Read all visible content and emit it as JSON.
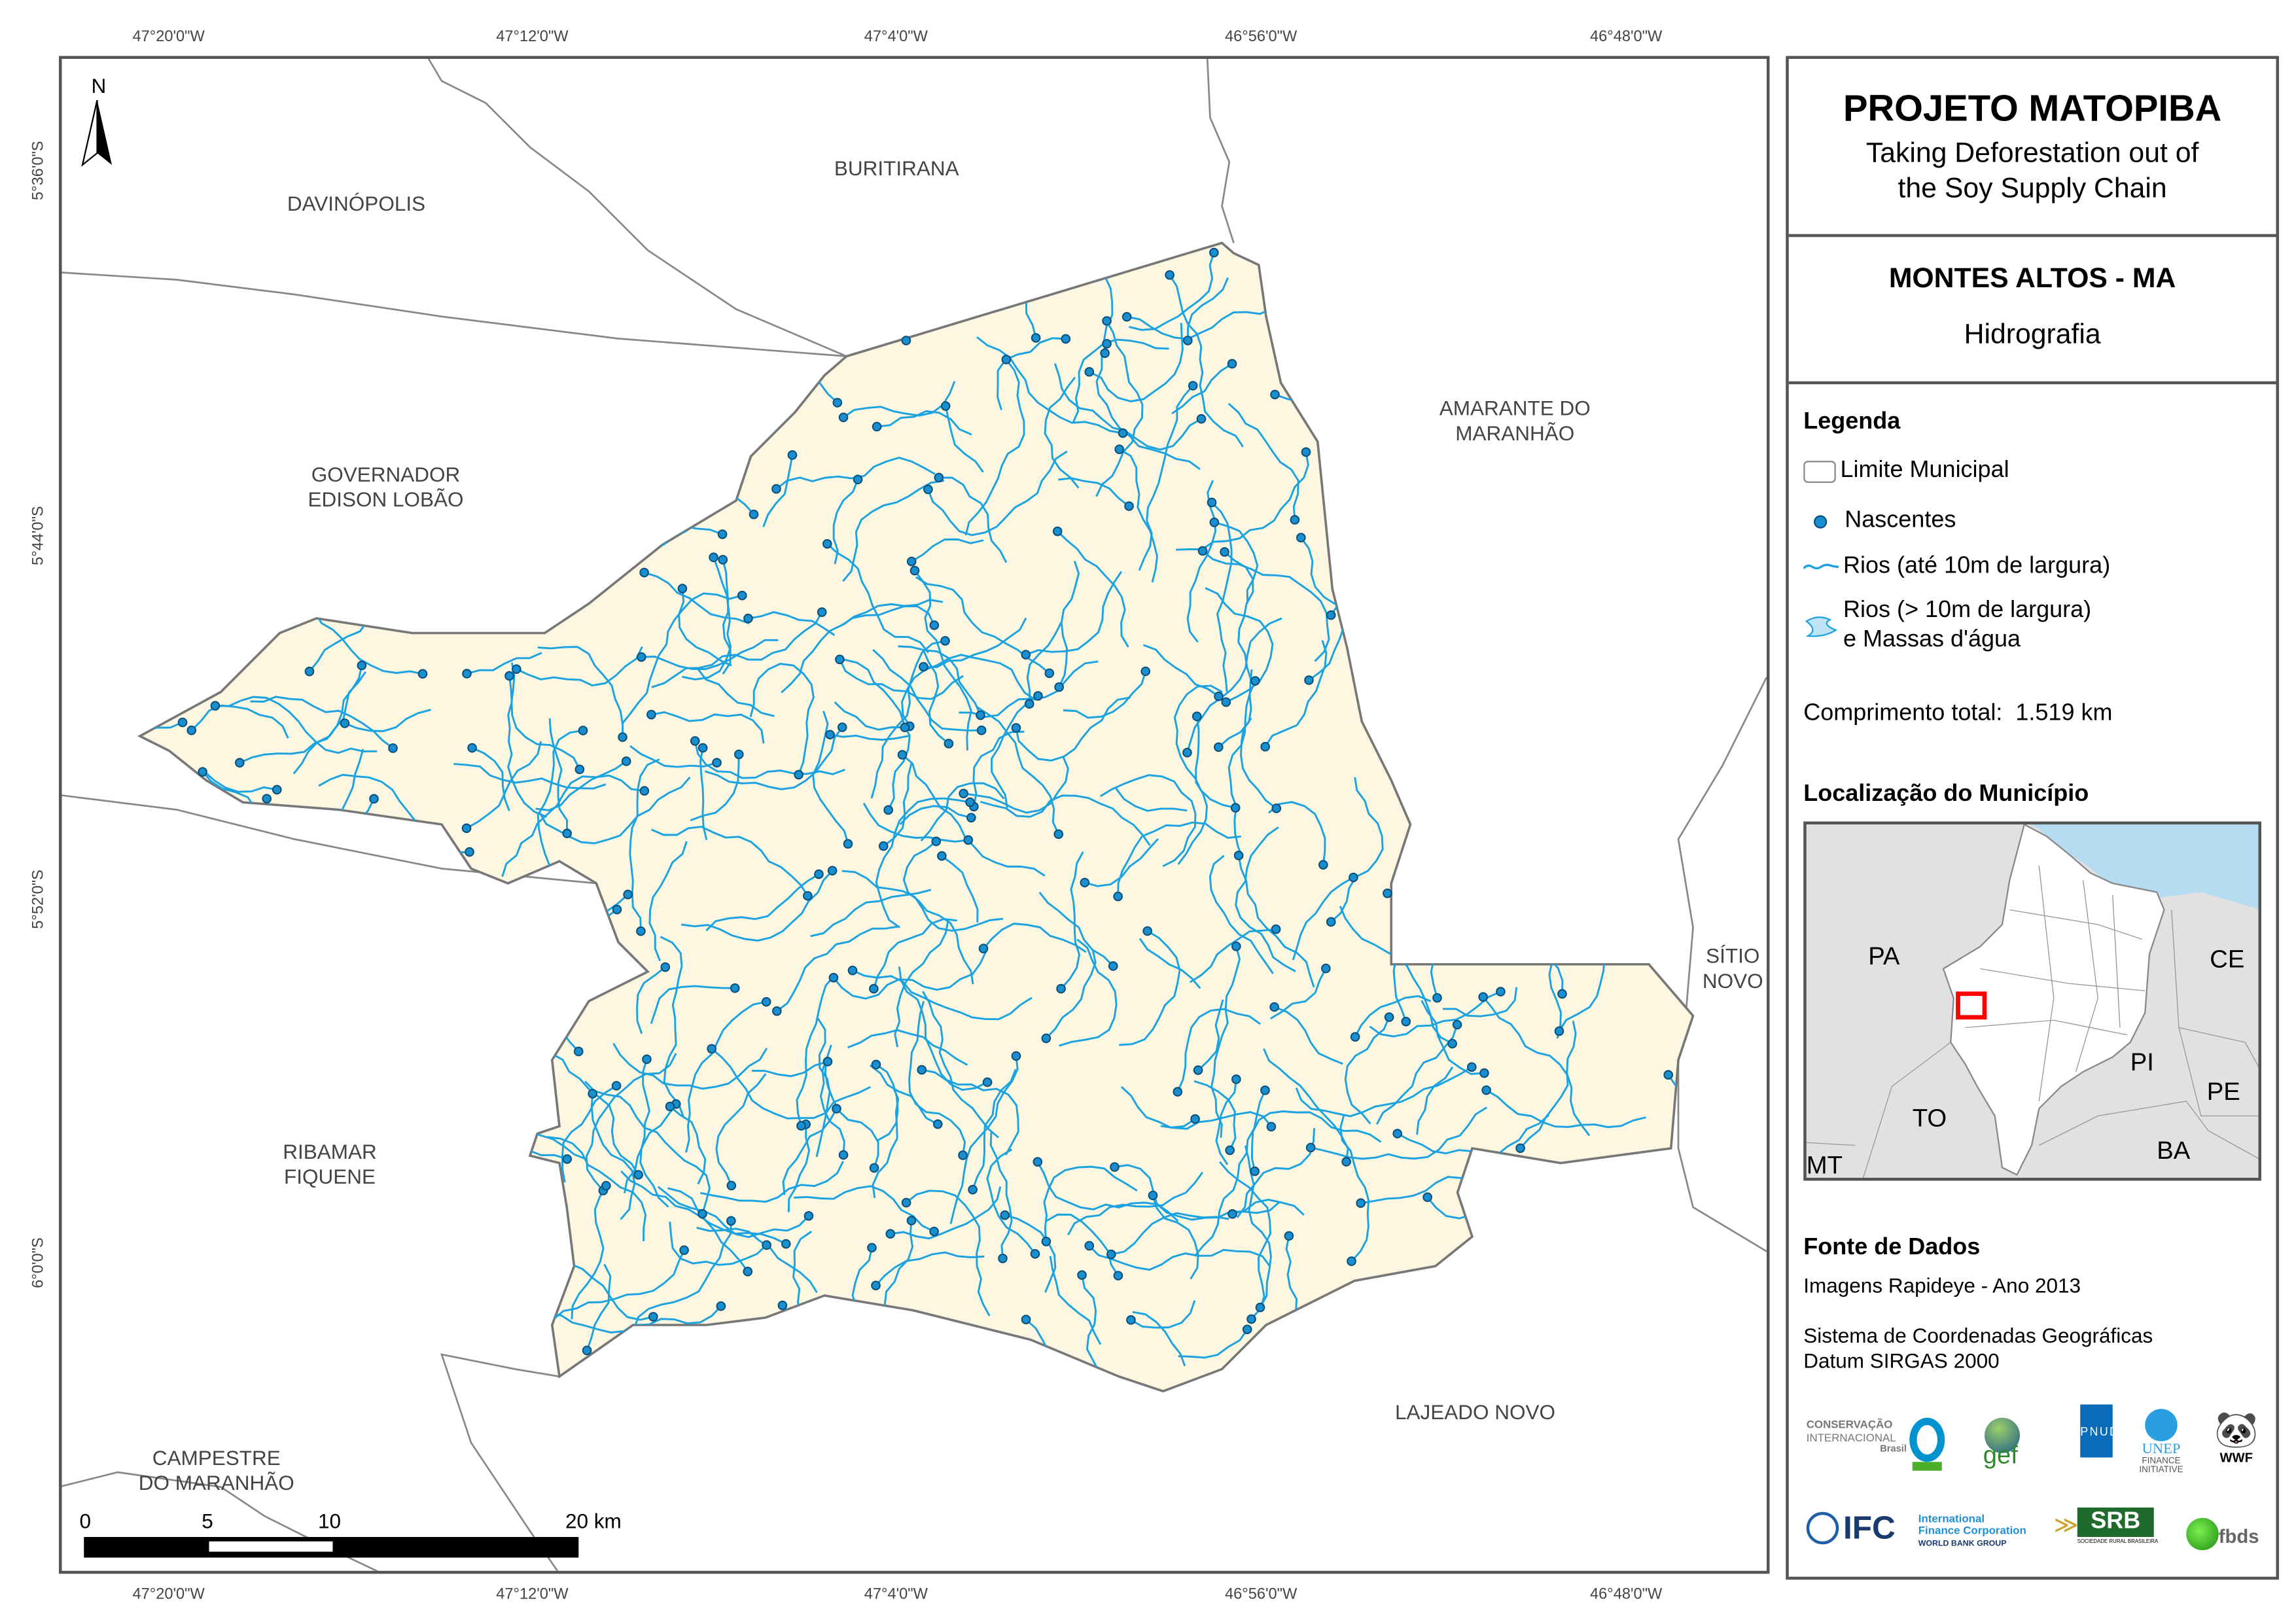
{
  "title": {
    "project": "PROJETO MATOPIBA",
    "tagline_1": "Taking Deforestation out of",
    "tagline_2": "the Soy Supply Chain",
    "municipality": "MONTES ALTOS - MA",
    "theme": "Hidrografia"
  },
  "legend": {
    "heading": "Legenda",
    "items": [
      {
        "label": "Limite Municipal",
        "symbol": "polygon-outline",
        "color": "#888888"
      },
      {
        "label": "Nascentes",
        "symbol": "dot",
        "color": "#1a8fd0"
      },
      {
        "label": "Rios (até 10m de largura)",
        "symbol": "line",
        "color": "#1aa3e0"
      },
      {
        "label_1": "Rios (> 10m de largura)",
        "label_2": "e Massas d'água",
        "symbol": "water-polygon",
        "color": "#bfe3f7"
      }
    ],
    "total_length_label": "Comprimento total:",
    "total_length_value": "1.519 km"
  },
  "locator": {
    "heading": "Localização do Município",
    "states": [
      "PA",
      "CE",
      "PI",
      "PE",
      "TO",
      "BA",
      "MT"
    ],
    "highlight_color": "#ff0000",
    "ocean_color": "#b5dcf0"
  },
  "sources": {
    "heading": "Fonte de Dados",
    "line_1": "Imagens Rapideye - Ano 2013",
    "line_2": "Sistema de Coordenadas Geográficas",
    "line_3": "Datum SIRGAS 2000"
  },
  "logos": {
    "ci_1": "CONSERVAÇÃO",
    "ci_2": "INTERNACIONAL",
    "ci_3": "Brasil",
    "gef": "gef",
    "pnud": "PNUD",
    "unep_1": "UNEP",
    "unep_2": "FINANCE",
    "unep_3": "INITIATIVE",
    "wwf": "WWF",
    "ifc": "IFC",
    "ifc_1": "International",
    "ifc_2": "Finance Corporation",
    "ifc_3": "WORLD BANK GROUP",
    "srb": "SRB",
    "srb_sub": "SOCIEDADE RURAL BRASILEIRA",
    "fbds": "fbds"
  },
  "map": {
    "north": "N",
    "x_ticks": [
      "47°20'0\"W",
      "47°12'0\"W",
      "47°4'0\"W",
      "46°56'0\"W",
      "46°48'0\"W"
    ],
    "y_ticks": [
      "5°36'0\"S",
      "5°44'0\"S",
      "5°52'0\"S",
      "6°0'0\"S"
    ],
    "neighbors": {
      "davinopolis": "DAVINÓPOLIS",
      "buritirana": "BURITIRANA",
      "amarante_1": "AMARANTE DO",
      "amarante_2": "MARANHÃO",
      "governador_1": "GOVERNADOR",
      "governador_2": "EDISON LOBÃO",
      "sitio_1": "SÍTIO",
      "sitio_2": "NOVO",
      "ribamar_1": "RIBAMAR",
      "ribamar_2": "FIQUENE",
      "lajeado": "LAJEADO NOVO",
      "campestre_1": "CAMPESTRE",
      "campestre_2": "DO MARANHÃO"
    },
    "scale_labels": [
      "0",
      "5",
      "10",
      "20 km"
    ],
    "municipality_fill": "#fdf6e0",
    "river_color": "#1aa3e0",
    "spring_color": "#1a8fd0"
  }
}
